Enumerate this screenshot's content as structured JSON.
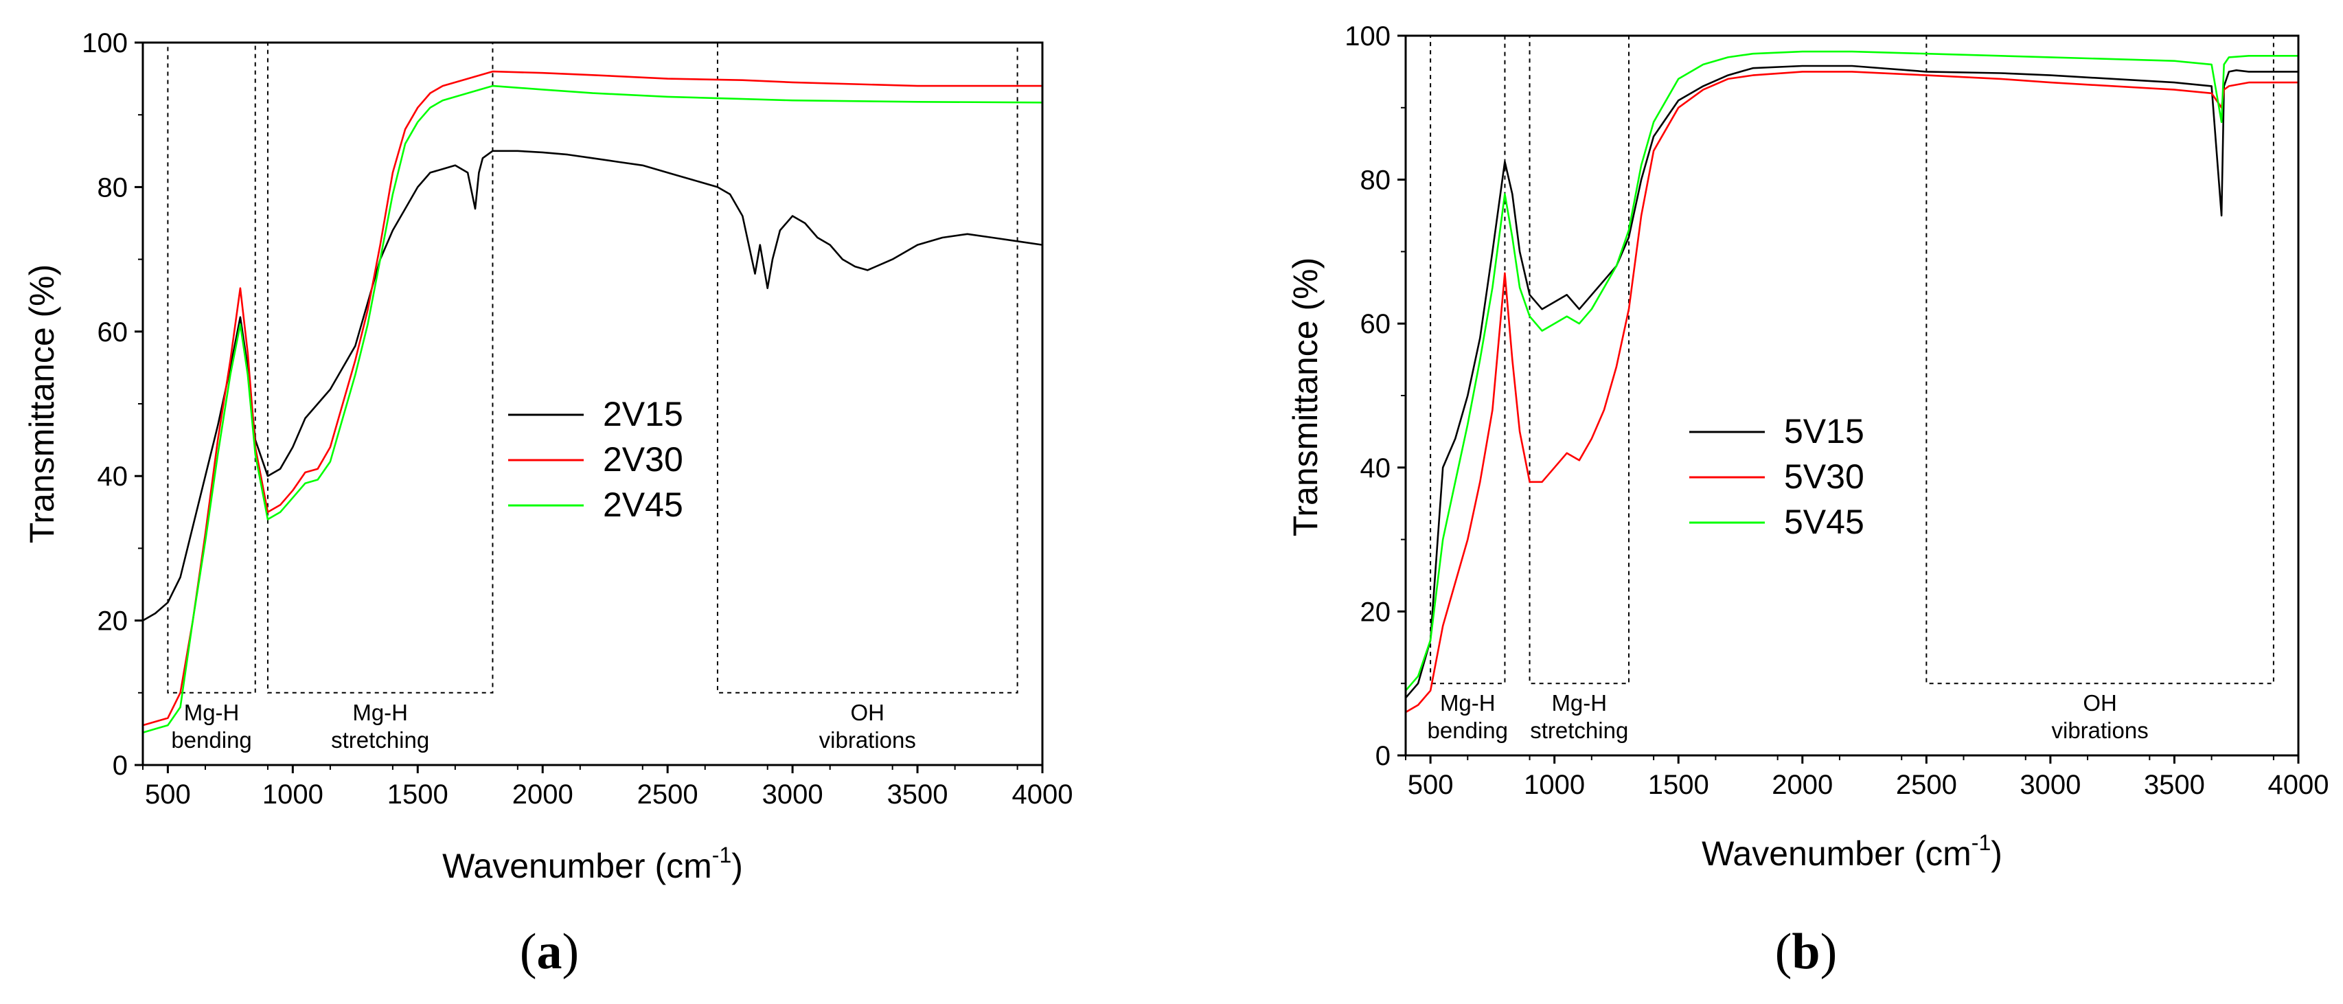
{
  "chart_data": [
    {
      "type": "line",
      "panel": "a",
      "xlabel": "Wavenumber (cm",
      "xlabel_sup": "-1",
      "xlabel_end": ")",
      "ylabel": "Transmittance (%)",
      "xlim": [
        400,
        4000
      ],
      "ylim": [
        0,
        100
      ],
      "xticks": [
        500,
        1000,
        1500,
        2000,
        2500,
        3000,
        3500,
        4000
      ],
      "yticks": [
        0,
        20,
        40,
        60,
        80,
        100
      ],
      "legend": [
        "2V15",
        "2V30",
        "2V45"
      ],
      "regions": [
        {
          "x": [
            500,
            850
          ],
          "y": [
            10,
            100
          ],
          "label_lines": [
            "Mg-H",
            "bending"
          ]
        },
        {
          "x": [
            900,
            1800
          ],
          "y": [
            10,
            100
          ],
          "label_lines": [
            "Mg-H",
            "stretching"
          ]
        },
        {
          "x": [
            2700,
            3900
          ],
          "y": [
            10,
            100
          ],
          "label_lines": [
            "OH",
            "vibrations"
          ]
        }
      ],
      "series": [
        {
          "name": "2V15",
          "color": "#000000",
          "x": [
            400,
            450,
            500,
            550,
            600,
            650,
            700,
            750,
            790,
            820,
            850,
            900,
            950,
            1000,
            1050,
            1100,
            1150,
            1200,
            1250,
            1300,
            1350,
            1400,
            1450,
            1500,
            1550,
            1600,
            1650,
            1700,
            1730,
            1745,
            1760,
            1800,
            1900,
            2000,
            2100,
            2200,
            2300,
            2400,
            2500,
            2600,
            2700,
            2750,
            2800,
            2850,
            2870,
            2900,
            2920,
            2950,
            3000,
            3050,
            3100,
            3150,
            3200,
            3250,
            3300,
            3400,
            3500,
            3600,
            3700,
            3800,
            3900,
            4000
          ],
          "y": [
            20,
            21,
            22.5,
            26,
            33,
            40,
            47,
            55,
            62,
            55,
            45,
            40,
            41,
            44,
            48,
            50,
            52,
            55,
            58,
            64,
            70,
            74,
            77,
            80,
            82,
            82.5,
            83,
            82,
            77,
            82,
            84,
            85,
            85,
            84.8,
            84.5,
            84,
            83.5,
            83,
            82,
            81,
            80,
            79,
            76,
            68,
            72,
            66,
            70,
            74,
            76,
            75,
            73,
            72,
            70,
            69,
            68.5,
            70,
            72,
            73,
            73.5,
            73,
            72.5,
            72
          ]
        },
        {
          "name": "2V30",
          "color": "#ff0000",
          "x": [
            400,
            450,
            500,
            550,
            600,
            650,
            700,
            750,
            790,
            820,
            850,
            900,
            950,
            1000,
            1050,
            1100,
            1150,
            1200,
            1250,
            1300,
            1350,
            1400,
            1450,
            1500,
            1550,
            1600,
            1700,
            1800,
            2000,
            2200,
            2500,
            2800,
            3000,
            3500,
            4000
          ],
          "y": [
            5.5,
            6,
            6.5,
            10,
            20,
            32,
            45,
            56,
            66,
            57,
            44,
            35,
            36,
            38,
            40.5,
            41,
            44,
            50,
            56,
            63,
            72,
            82,
            88,
            91,
            93,
            94,
            95,
            96,
            95.8,
            95.5,
            95,
            94.8,
            94.5,
            94,
            94
          ]
        },
        {
          "name": "2V45",
          "color": "#00ff00",
          "x": [
            400,
            450,
            500,
            550,
            600,
            650,
            700,
            750,
            790,
            820,
            850,
            900,
            950,
            1000,
            1050,
            1100,
            1150,
            1200,
            1250,
            1300,
            1350,
            1400,
            1450,
            1500,
            1550,
            1600,
            1700,
            1800,
            2000,
            2200,
            2500,
            2800,
            3000,
            3500,
            4000
          ],
          "y": [
            4.5,
            5,
            5.5,
            8,
            20,
            31,
            43,
            54,
            61,
            54,
            43,
            34,
            35,
            37,
            39,
            39.5,
            42,
            48,
            54,
            61,
            70,
            79,
            86,
            89,
            91,
            92,
            93,
            94,
            93.5,
            93,
            92.5,
            92.2,
            92,
            91.8,
            91.7
          ]
        }
      ]
    },
    {
      "type": "line",
      "panel": "b",
      "xlabel": "Wavenumber (cm",
      "xlabel_sup": "-1",
      "xlabel_end": ")",
      "ylabel": "Transmittance (%)",
      "xlim": [
        400,
        4000
      ],
      "ylim": [
        0,
        100
      ],
      "xticks": [
        500,
        1000,
        1500,
        2000,
        2500,
        3000,
        3500,
        4000
      ],
      "yticks": [
        0,
        20,
        40,
        60,
        80,
        100
      ],
      "legend": [
        "5V15",
        "5V30",
        "5V45"
      ],
      "regions": [
        {
          "x": [
            500,
            800
          ],
          "y": [
            10,
            100
          ],
          "label_lines": [
            "Mg-H",
            "bending"
          ]
        },
        {
          "x": [
            900,
            1300
          ],
          "y": [
            10,
            100
          ],
          "label_lines": [
            "Mg-H",
            "stretching"
          ]
        },
        {
          "x": [
            2500,
            3900
          ],
          "y": [
            10,
            100
          ],
          "label_lines": [
            "OH",
            "vibrations"
          ]
        }
      ],
      "series": [
        {
          "name": "5V15",
          "color": "#000000",
          "x": [
            400,
            450,
            500,
            550,
            600,
            650,
            700,
            750,
            800,
            830,
            860,
            900,
            950,
            1000,
            1050,
            1100,
            1150,
            1200,
            1250,
            1300,
            1350,
            1400,
            1500,
            1600,
            1700,
            1800,
            2000,
            2200,
            2500,
            2800,
            3000,
            3500,
            3650,
            3690,
            3700,
            3720,
            3750,
            3800,
            4000
          ],
          "y": [
            8,
            10,
            16,
            40,
            44,
            50,
            58,
            70,
            82.5,
            78,
            70,
            64,
            62,
            63,
            64,
            62,
            64,
            66,
            68,
            72,
            80,
            86,
            91,
            93,
            94.5,
            95.5,
            95.8,
            95.8,
            95,
            94.8,
            94.5,
            93.5,
            93,
            75,
            93,
            95,
            95.2,
            95,
            95
          ]
        },
        {
          "name": "5V30",
          "color": "#ff0000",
          "x": [
            400,
            450,
            500,
            550,
            600,
            650,
            700,
            750,
            800,
            830,
            860,
            900,
            950,
            1000,
            1050,
            1100,
            1150,
            1200,
            1250,
            1300,
            1350,
            1400,
            1500,
            1600,
            1700,
            1800,
            2000,
            2200,
            2500,
            2800,
            3000,
            3500,
            3650,
            3690,
            3700,
            3720,
            3800,
            4000
          ],
          "y": [
            6,
            7,
            9,
            18,
            24,
            30,
            38,
            48,
            67,
            55,
            45,
            38,
            38,
            40,
            42,
            41,
            44,
            48,
            54,
            62,
            75,
            84,
            90,
            92.5,
            94,
            94.5,
            95,
            95,
            94.5,
            94,
            93.5,
            92.5,
            92,
            90,
            92.5,
            93,
            93.5,
            93.5
          ]
        },
        {
          "name": "5V45",
          "color": "#00ff00",
          "x": [
            400,
            450,
            500,
            550,
            600,
            650,
            700,
            750,
            800,
            830,
            860,
            900,
            950,
            1000,
            1050,
            1100,
            1150,
            1200,
            1250,
            1300,
            1350,
            1400,
            1500,
            1600,
            1700,
            1800,
            2000,
            2200,
            2500,
            2800,
            3000,
            3500,
            3650,
            3690,
            3700,
            3720,
            3800,
            4000
          ],
          "y": [
            9,
            11,
            16,
            30,
            38,
            46,
            55,
            65,
            78,
            72,
            65,
            61,
            59,
            60,
            61,
            60,
            62,
            65,
            68,
            73,
            82,
            88,
            94,
            96,
            97,
            97.5,
            97.8,
            97.8,
            97.5,
            97.2,
            97,
            96.5,
            96,
            88,
            96,
            97,
            97.2,
            97.2
          ]
        }
      ]
    }
  ],
  "captions": [
    {
      "open": "(",
      "letter": "a",
      "close": ")"
    },
    {
      "open": "(",
      "letter": "b",
      "close": ")"
    }
  ]
}
